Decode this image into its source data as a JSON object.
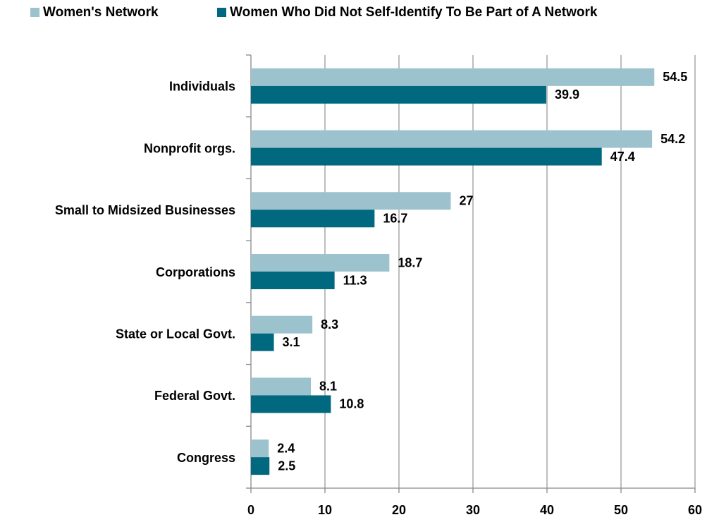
{
  "chart_data": {
    "type": "bar",
    "orientation": "horizontal",
    "categories": [
      "Individuals",
      "Nonprofit orgs.",
      "Small to Midsized Businesses",
      "Corporations",
      "State or Local Govt.",
      "Federal Govt.",
      "Congress"
    ],
    "series": [
      {
        "name": "Women's Network",
        "color": "#9cc3cd",
        "values": [
          54.5,
          54.2,
          27,
          18.7,
          8.3,
          8.1,
          2.4
        ]
      },
      {
        "name": "Women Who Did Not Self-Identify To Be Part of A Network",
        "color": "#00687f",
        "values": [
          39.9,
          47.4,
          16.7,
          11.3,
          3.1,
          10.8,
          2.5
        ]
      }
    ],
    "xlim": [
      0,
      60
    ],
    "xticks": [
      0,
      10,
      20,
      30,
      40,
      50,
      60
    ],
    "grid": true,
    "legend": "top"
  }
}
